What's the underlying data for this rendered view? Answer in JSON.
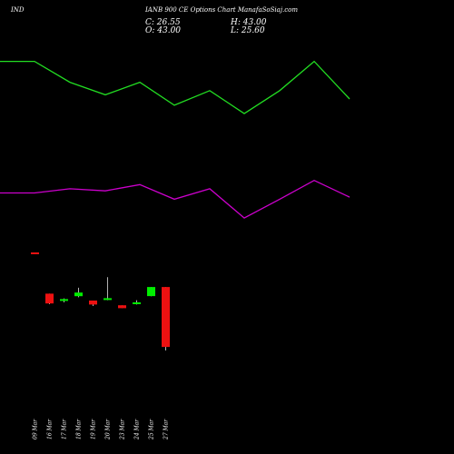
{
  "header": {
    "symbol": "IND",
    "subtitle": "IANB 900  CE Options  Chart ManafaSoSiaj.com",
    "close": "C: 26.55",
    "high": "H: 43.00",
    "open": "O: 43.00",
    "low": "L: 25.60"
  },
  "colors": {
    "background": "#000000",
    "upper_line": "#22dd22",
    "lower_line": "#cc00cc",
    "bull": "#00ee00",
    "bear": "#ee1111",
    "wick": "#ffffff",
    "text": "#ffffff"
  },
  "chart_data": {
    "type": "candlestick",
    "lines": [
      {
        "color": "#22dd22",
        "values": [
          0.12,
          0.12,
          0.22,
          0.28,
          0.22,
          0.33,
          0.26,
          0.37,
          0.26,
          0.12,
          0.3
        ]
      },
      {
        "color": "#cc00cc",
        "values": [
          0.75,
          0.75,
          0.73,
          0.74,
          0.71,
          0.78,
          0.73,
          0.87,
          0.78,
          0.69,
          0.77
        ]
      }
    ],
    "candles": [
      {
        "date": "09 Mar",
        "open": 52.5,
        "close": 52.2,
        "high": 52.5,
        "low": 52.2
      },
      {
        "date": "16 Mar",
        "open": 41.2,
        "close": 38.5,
        "high": 41.2,
        "low": 38.3
      },
      {
        "date": "17 Mar",
        "open": 39.3,
        "close": 39.7,
        "high": 39.9,
        "low": 38.8
      },
      {
        "date": "18 Mar",
        "open": 40.5,
        "close": 41.5,
        "high": 42.8,
        "low": 40.2
      },
      {
        "date": "19 Mar",
        "open": 39.3,
        "close": 38.2,
        "high": 39.3,
        "low": 37.8
      },
      {
        "date": "20 Mar",
        "open": 39.9,
        "close": 39.95,
        "high": 45.7,
        "low": 39.4
      },
      {
        "date": "23 Mar",
        "open": 38.0,
        "close": 37.2,
        "high": 38.0,
        "low": 37.2
      },
      {
        "date": "24 Mar",
        "open": 38.5,
        "close": 38.8,
        "high": 39.4,
        "low": 38.2
      },
      {
        "date": "25 Mar",
        "open": 40.5,
        "close": 43.0,
        "high": 43.0,
        "low": 40.5
      },
      {
        "date": "27 Mar",
        "open": 43.0,
        "close": 26.55,
        "high": 43.0,
        "low": 25.6
      }
    ]
  }
}
